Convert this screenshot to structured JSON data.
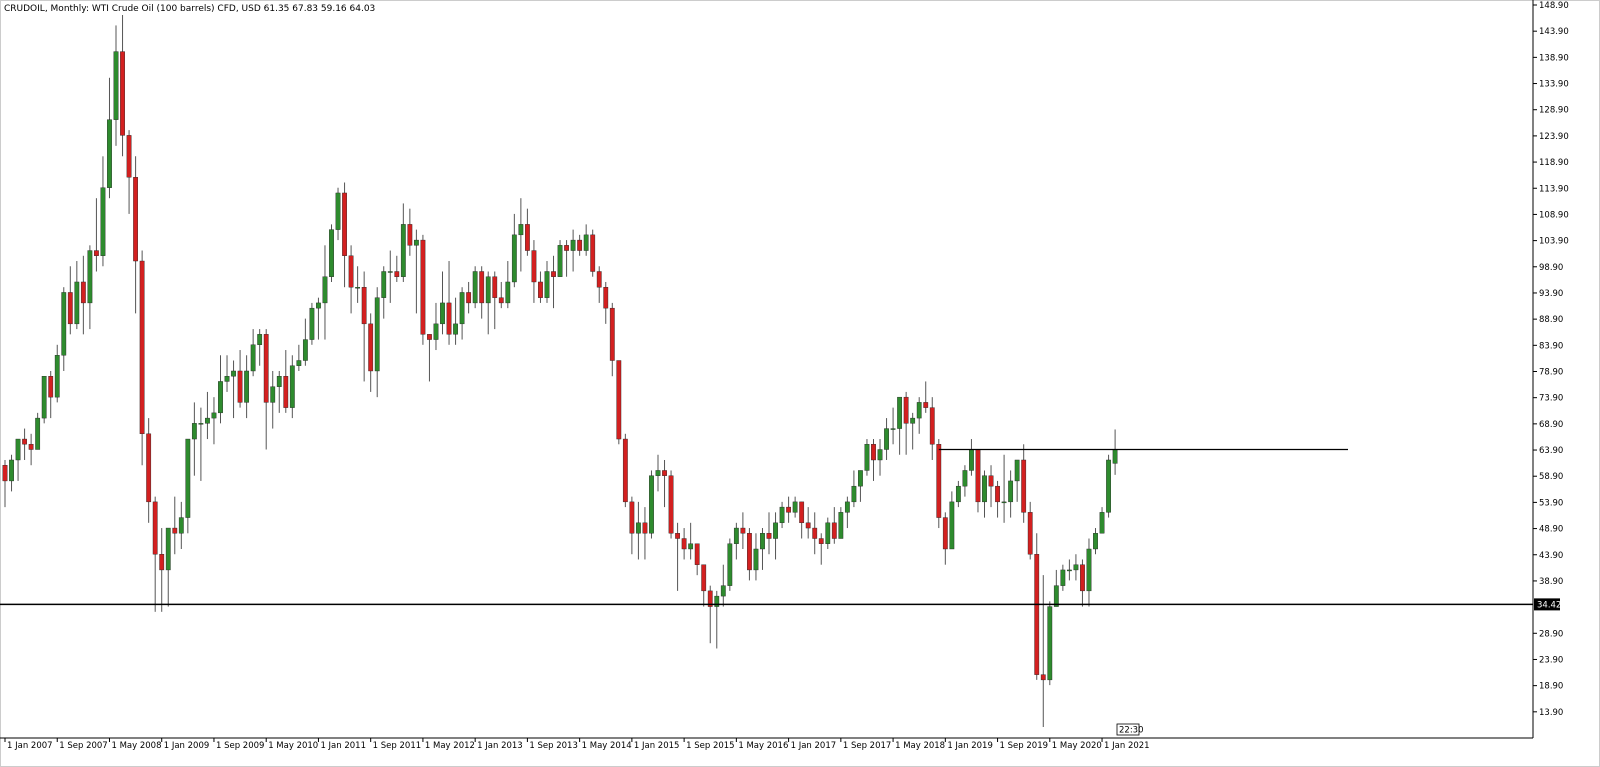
{
  "header": {
    "symbol": "CRUDOIL",
    "timeframe": "Monthly",
    "description": "WTI Crude Oil (100 barrels) CFD, USD",
    "ohlc": "61.35 67.83 59.16 64.03"
  },
  "chart_data": {
    "type": "candlestick",
    "title": "",
    "xlabel": "",
    "ylabel": "",
    "ylim": [
      8.9,
      148.9
    ],
    "x_ticks": [
      "1 Jan 2007",
      "1 Sep 2007",
      "1 May 2008",
      "1 Jan 2009",
      "1 Sep 2009",
      "1 May 2010",
      "1 Jan 2011",
      "1 Sep 2011",
      "1 May 2012",
      "1 Jan 2013",
      "1 Sep 2013",
      "1 May 2014",
      "1 Jan 2015",
      "1 Sep 2015",
      "1 May 2016",
      "1 Jan 2017",
      "1 Sep 2017",
      "1 May 2018",
      "1 Jan 2019",
      "1 Sep 2019",
      "1 May 2020",
      "1 Jan 2021"
    ],
    "y_ticks": [
      "148.90",
      "143.90",
      "138.90",
      "133.90",
      "128.90",
      "123.90",
      "118.90",
      "113.90",
      "108.90",
      "103.90",
      "98.90",
      "93.90",
      "88.90",
      "83.90",
      "78.90",
      "73.90",
      "68.90",
      "63.90",
      "58.90",
      "53.90",
      "48.90",
      "43.90",
      "38.90",
      "28.90",
      "23.90",
      "18.90",
      "13.90"
    ],
    "current_price_label": "34.42",
    "annotations": [
      "22:30"
    ],
    "horizontal_lines": [
      {
        "name": "support-line",
        "value": 34.42
      },
      {
        "name": "resistance-line",
        "value": 64.0
      }
    ],
    "colors": {
      "bull": "#2e8b2e",
      "bear": "#d32020",
      "wick": "#555555",
      "line": "#000000"
    },
    "series": [
      {
        "months_from": "Jan 2007",
        "values": [
          [
            61.0,
            62.0,
            53.0,
            58.0
          ],
          [
            58.0,
            63.0,
            56.0,
            62.0
          ],
          [
            62.0,
            66.0,
            58.0,
            66.0
          ],
          [
            66.0,
            68.0,
            62.0,
            65.0
          ],
          [
            65.0,
            67.0,
            61.0,
            64.0
          ],
          [
            64.0,
            71.0,
            64.0,
            70.0
          ],
          [
            70.0,
            78.0,
            69.0,
            78.0
          ],
          [
            78.0,
            79.0,
            70.0,
            74.0
          ],
          [
            74.0,
            84.0,
            73.0,
            82.0
          ],
          [
            82.0,
            95.0,
            79.0,
            94.0
          ],
          [
            94.0,
            99.0,
            86.0,
            88.0
          ],
          [
            88.0,
            100.0,
            87.0,
            96.0
          ],
          [
            96.0,
            101.0,
            86.0,
            92.0
          ],
          [
            92.0,
            103.0,
            87.0,
            102.0
          ],
          [
            102.0,
            112.0,
            98.0,
            101.0
          ],
          [
            101.0,
            120.0,
            99.0,
            114.0
          ],
          [
            114.0,
            135.0,
            112.0,
            127.0
          ],
          [
            127.0,
            145.0,
            122.0,
            140.0
          ],
          [
            140.0,
            147.0,
            120.0,
            124.0
          ],
          [
            124.0,
            125.0,
            109.0,
            116.0
          ],
          [
            116.0,
            120.0,
            90.0,
            100.0
          ],
          [
            100.0,
            102.0,
            61.0,
            67.0
          ],
          [
            67.0,
            70.0,
            50.0,
            54.0
          ],
          [
            54.0,
            55.0,
            33.0,
            44.0
          ],
          [
            44.0,
            49.0,
            33.0,
            41.0
          ],
          [
            41.0,
            47.0,
            34.0,
            49.0
          ],
          [
            49.0,
            55.0,
            44.0,
            48.0
          ],
          [
            48.0,
            54.0,
            45.0,
            51.0
          ],
          [
            51.0,
            66.0,
            48.0,
            66.0
          ],
          [
            66.0,
            73.0,
            59.0,
            69.0
          ],
          [
            69.0,
            72.0,
            58.0,
            69.0
          ],
          [
            69.0,
            75.0,
            66.0,
            70.0
          ],
          [
            70.0,
            74.0,
            65.0,
            71.0
          ],
          [
            71.0,
            82.0,
            69.0,
            77.0
          ],
          [
            77.0,
            82.0,
            75.0,
            78.0
          ],
          [
            78.0,
            81.0,
            70.0,
            79.0
          ],
          [
            79.0,
            83.0,
            72.0,
            73.0
          ],
          [
            73.0,
            82.0,
            70.0,
            79.0
          ],
          [
            79.0,
            87.0,
            78.0,
            84.0
          ],
          [
            84.0,
            87.0,
            80.0,
            86.0
          ],
          [
            86.0,
            87.0,
            64.0,
            73.0
          ],
          [
            73.0,
            79.0,
            68.0,
            76.0
          ],
          [
            76.0,
            79.0,
            71.0,
            78.0
          ],
          [
            78.0,
            83.0,
            71.0,
            72.0
          ],
          [
            72.0,
            82.0,
            70.0,
            80.0
          ],
          [
            80.0,
            84.0,
            79.0,
            81.0
          ],
          [
            81.0,
            89.0,
            80.0,
            85.0
          ],
          [
            85.0,
            92.0,
            84.0,
            91.0
          ],
          [
            91.0,
            93.0,
            85.0,
            92.0
          ],
          [
            92.0,
            103.0,
            85.0,
            97.0
          ],
          [
            97.0,
            107.0,
            96.0,
            106.0
          ],
          [
            106.0,
            114.0,
            104.0,
            113.0
          ],
          [
            113.0,
            115.0,
            95.0,
            101.0
          ],
          [
            101.0,
            103.0,
            90.0,
            95.0
          ],
          [
            95.0,
            99.0,
            92.0,
            95.0
          ],
          [
            95.0,
            98.0,
            77.0,
            88.0
          ],
          [
            88.0,
            90.0,
            75.0,
            79.0
          ],
          [
            79.0,
            95.0,
            74.0,
            93.0
          ],
          [
            93.0,
            99.0,
            89.0,
            98.0
          ],
          [
            98.0,
            102.0,
            92.0,
            98.0
          ],
          [
            98.0,
            101.0,
            96.0,
            97.0
          ],
          [
            97.0,
            111.0,
            96.0,
            107.0
          ],
          [
            107.0,
            110.0,
            101.0,
            103.0
          ],
          [
            103.0,
            106.0,
            90.0,
            104.0
          ],
          [
            104.0,
            105.0,
            84.0,
            86.0
          ],
          [
            86.0,
            86.0,
            77.0,
            85.0
          ],
          [
            85.0,
            92.0,
            83.0,
            88.0
          ],
          [
            88.0,
            98.0,
            86.0,
            92.0
          ],
          [
            92.0,
            100.0,
            84.0,
            86.0
          ],
          [
            86.0,
            93.0,
            84.0,
            88.0
          ],
          [
            88.0,
            95.0,
            85.0,
            94.0
          ],
          [
            94.0,
            96.0,
            90.0,
            92.0
          ],
          [
            92.0,
            99.0,
            91.0,
            98.0
          ],
          [
            98.0,
            99.0,
            89.0,
            92.0
          ],
          [
            92.0,
            98.0,
            86.0,
            97.0
          ],
          [
            97.0,
            98.0,
            87.0,
            93.0
          ],
          [
            93.0,
            96.0,
            91.0,
            92.0
          ],
          [
            92.0,
            100.0,
            91.0,
            96.0
          ],
          [
            96.0,
            109.0,
            95.0,
            105.0
          ],
          [
            105.0,
            112.0,
            98.0,
            107.0
          ],
          [
            107.0,
            110.0,
            101.0,
            102.0
          ],
          [
            102.0,
            104.0,
            92.0,
            96.0
          ],
          [
            96.0,
            98.0,
            92.0,
            93.0
          ],
          [
            93.0,
            100.0,
            92.0,
            98.0
          ],
          [
            98.0,
            101.0,
            91.0,
            97.0
          ],
          [
            97.0,
            104.0,
            97.0,
            103.0
          ],
          [
            103.0,
            104.0,
            97.0,
            102.0
          ],
          [
            102.0,
            106.0,
            98.0,
            104.0
          ],
          [
            104.0,
            105.0,
            101.0,
            102.0
          ],
          [
            102.0,
            107.0,
            101.0,
            105.0
          ],
          [
            105.0,
            106.0,
            97.0,
            98.0
          ],
          [
            98.0,
            99.0,
            92.0,
            95.0
          ],
          [
            95.0,
            96.0,
            88.0,
            91.0
          ],
          [
            91.0,
            92.0,
            78.0,
            81.0
          ],
          [
            81.0,
            81.0,
            65.0,
            66.0
          ],
          [
            66.0,
            67.0,
            53.0,
            54.0
          ],
          [
            54.0,
            55.0,
            44.0,
            48.0
          ],
          [
            48.0,
            54.0,
            43.0,
            50.0
          ],
          [
            50.0,
            53.0,
            43.0,
            48.0
          ],
          [
            48.0,
            60.0,
            47.0,
            59.0
          ],
          [
            59.0,
            63.0,
            56.0,
            60.0
          ],
          [
            60.0,
            62.0,
            53.0,
            59.0
          ],
          [
            59.0,
            60.0,
            47.0,
            48.0
          ],
          [
            48.0,
            50.0,
            37.0,
            47.0
          ],
          [
            47.0,
            49.0,
            43.0,
            45.0
          ],
          [
            45.0,
            50.0,
            43.0,
            46.0
          ],
          [
            46.0,
            46.0,
            40.0,
            42.0
          ],
          [
            42.0,
            42.0,
            34.0,
            37.0
          ],
          [
            37.0,
            38.0,
            27.0,
            34.0
          ],
          [
            34.0,
            37.0,
            26.0,
            36.0
          ],
          [
            36.0,
            42.0,
            34.0,
            38.0
          ],
          [
            38.0,
            47.0,
            37.0,
            46.0
          ],
          [
            46.0,
            50.0,
            43.0,
            49.0
          ],
          [
            49.0,
            52.0,
            45.0,
            48.0
          ],
          [
            48.0,
            49.0,
            39.0,
            41.0
          ],
          [
            41.0,
            48.0,
            39.0,
            45.0
          ],
          [
            45.0,
            49.0,
            41.0,
            48.0
          ],
          [
            48.0,
            52.0,
            44.0,
            47.0
          ],
          [
            47.0,
            52.0,
            43.0,
            50.0
          ],
          [
            50.0,
            54.0,
            49.0,
            53.0
          ],
          [
            53.0,
            55.0,
            50.0,
            52.0
          ],
          [
            52.0,
            55.0,
            51.0,
            54.0
          ],
          [
            54.0,
            54.0,
            47.0,
            50.0
          ],
          [
            50.0,
            53.0,
            47.0,
            49.0
          ],
          [
            49.0,
            52.0,
            44.0,
            47.0
          ],
          [
            47.0,
            48.0,
            42.0,
            46.0
          ],
          [
            46.0,
            51.0,
            45.0,
            50.0
          ],
          [
            50.0,
            53.0,
            46.0,
            47.0
          ],
          [
            47.0,
            53.0,
            47.0,
            52.0
          ],
          [
            52.0,
            55.0,
            49.0,
            54.0
          ],
          [
            54.0,
            60.0,
            53.0,
            57.0
          ],
          [
            57.0,
            60.0,
            54.0,
            60.0
          ],
          [
            60.0,
            66.0,
            59.0,
            65.0
          ],
          [
            65.0,
            66.0,
            58.0,
            62.0
          ],
          [
            62.0,
            66.0,
            59.0,
            64.0
          ],
          [
            64.0,
            70.0,
            62.0,
            68.0
          ],
          [
            68.0,
            72.0,
            65.0,
            68.0
          ],
          [
            68.0,
            70.0,
            63.0,
            74.0
          ],
          [
            74.0,
            75.0,
            63.0,
            69.0
          ],
          [
            69.0,
            71.0,
            64.0,
            70.0
          ],
          [
            70.0,
            74.0,
            67.0,
            73.0
          ],
          [
            73.0,
            77.0,
            71.0,
            72.0
          ],
          [
            72.0,
            74.0,
            62.0,
            65.0
          ],
          [
            65.0,
            66.0,
            49.0,
            51.0
          ],
          [
            51.0,
            52.0,
            42.0,
            45.0
          ],
          [
            45.0,
            56.0,
            45.0,
            54.0
          ],
          [
            54.0,
            58.0,
            53.0,
            57.0
          ],
          [
            57.0,
            61.0,
            55.0,
            60.0
          ],
          [
            60.0,
            66.0,
            59.0,
            64.0
          ],
          [
            64.0,
            64.0,
            52.0,
            54.0
          ],
          [
            54.0,
            60.0,
            51.0,
            59.0
          ],
          [
            59.0,
            61.0,
            53.0,
            57.0
          ],
          [
            57.0,
            58.0,
            51.0,
            54.0
          ],
          [
            54.0,
            63.0,
            50.0,
            54.0
          ],
          [
            54.0,
            60.0,
            51.0,
            58.0
          ],
          [
            58.0,
            62.0,
            54.0,
            62.0
          ],
          [
            62.0,
            65.0,
            50.0,
            52.0
          ],
          [
            52.0,
            54.0,
            43.0,
            44.0
          ],
          [
            44.0,
            48.0,
            20.0,
            21.0
          ],
          [
            21.0,
            40.0,
            11.0,
            20.0
          ],
          [
            20.0,
            35.0,
            19.0,
            34.0
          ],
          [
            34.0,
            41.0,
            34.0,
            38.0
          ],
          [
            38.0,
            42.0,
            37.0,
            41.0
          ],
          [
            41.0,
            43.0,
            39.0,
            41.0
          ],
          [
            41.0,
            44.0,
            39.0,
            42.0
          ],
          [
            42.0,
            43.0,
            34.0,
            37.0
          ],
          [
            37.0,
            47.0,
            34.0,
            45.0
          ],
          [
            45.0,
            49.0,
            44.0,
            48.0
          ],
          [
            48.0,
            53.0,
            48.0,
            52.0
          ],
          [
            52.0,
            63.0,
            51.0,
            62.0
          ],
          [
            61.35,
            67.83,
            59.16,
            64.03
          ]
        ]
      }
    ]
  }
}
